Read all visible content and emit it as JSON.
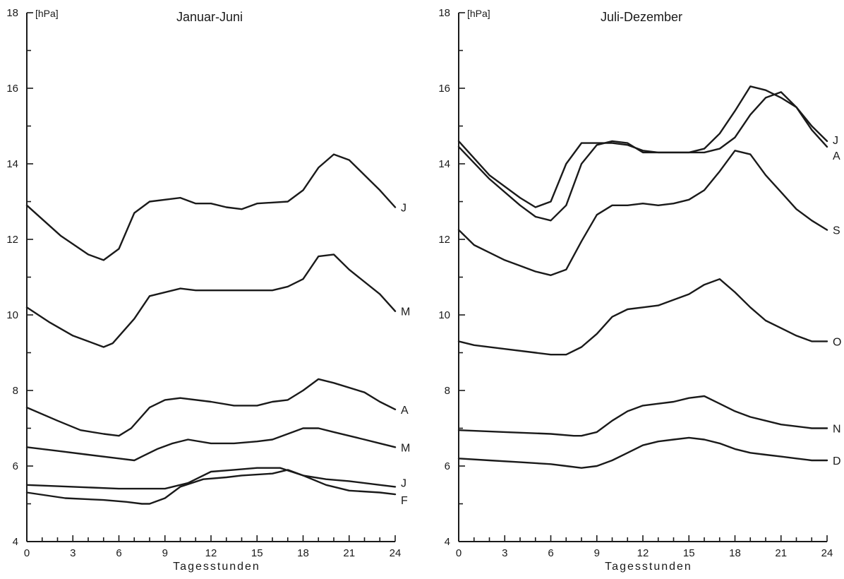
{
  "chart_data": [
    {
      "type": "line",
      "title": "Januar-Juni",
      "unit_label": "[hPa]",
      "xlabel": "Tagesstunden",
      "ylabel": "",
      "xlim": [
        0,
        24
      ],
      "ylim": [
        4,
        18
      ],
      "xticks": [
        0,
        3,
        6,
        9,
        12,
        15,
        18,
        21,
        24
      ],
      "yticks": [
        4,
        6,
        8,
        10,
        12,
        14,
        16,
        18
      ],
      "grid": false,
      "series": [
        {
          "name": "J",
          "x": [
            0,
            2.2,
            4,
            5,
            6,
            7,
            8,
            10,
            11,
            12,
            13,
            14,
            15,
            17,
            18,
            19,
            20,
            21,
            23,
            24
          ],
          "values": [
            12.9,
            12.1,
            11.6,
            11.45,
            11.75,
            12.7,
            13.0,
            13.1,
            12.95,
            12.95,
            12.85,
            12.8,
            12.95,
            13.0,
            13.3,
            13.9,
            14.25,
            14.1,
            13.3,
            12.85
          ]
        },
        {
          "name": "M",
          "x": [
            0,
            1.5,
            3,
            4,
            5,
            5.6,
            7,
            8,
            10,
            11,
            12,
            14,
            16,
            17,
            18,
            19,
            20,
            21,
            23,
            24
          ],
          "values": [
            10.2,
            9.8,
            9.45,
            9.3,
            9.15,
            9.25,
            9.9,
            10.5,
            10.7,
            10.65,
            10.65,
            10.65,
            10.65,
            10.75,
            10.95,
            11.55,
            11.6,
            11.2,
            10.55,
            10.1
          ]
        },
        {
          "name": "A",
          "x": [
            0,
            2,
            3.5,
            5,
            6,
            6.8,
            8,
            9,
            10,
            12,
            13.5,
            15,
            16,
            17,
            18,
            19,
            20,
            22,
            23,
            24
          ],
          "values": [
            7.55,
            7.2,
            6.95,
            6.85,
            6.8,
            7.0,
            7.55,
            7.75,
            7.8,
            7.7,
            7.6,
            7.6,
            7.7,
            7.75,
            8.0,
            8.3,
            8.2,
            7.95,
            7.7,
            7.5
          ]
        },
        {
          "name": "M",
          "x": [
            0,
            2,
            4,
            6,
            7,
            7.5,
            8.5,
            9.5,
            10.5,
            12,
            13.5,
            15,
            16,
            17,
            18,
            19,
            20,
            22,
            23,
            24
          ],
          "values": [
            6.5,
            6.4,
            6.3,
            6.2,
            6.15,
            6.25,
            6.45,
            6.6,
            6.7,
            6.6,
            6.6,
            6.65,
            6.7,
            6.85,
            7.0,
            7.0,
            6.9,
            6.7,
            6.6,
            6.5
          ]
        },
        {
          "name": "J",
          "x": [
            0,
            3,
            6,
            8,
            9,
            10.5,
            12,
            13.5,
            15,
            16.5,
            18,
            19.5,
            21,
            23,
            24
          ],
          "values": [
            5.5,
            5.45,
            5.4,
            5.4,
            5.4,
            5.55,
            5.85,
            5.9,
            5.95,
            5.95,
            5.75,
            5.65,
            5.6,
            5.5,
            5.45
          ]
        },
        {
          "name": "F",
          "x": [
            0,
            2.5,
            5,
            6.5,
            7.5,
            8,
            9,
            10,
            11.5,
            13,
            14,
            16,
            17,
            18,
            19.5,
            21,
            23,
            24
          ],
          "values": [
            5.3,
            5.15,
            5.1,
            5.05,
            5.0,
            5.0,
            5.15,
            5.45,
            5.65,
            5.7,
            5.75,
            5.8,
            5.9,
            5.75,
            5.5,
            5.35,
            5.3,
            5.25
          ]
        }
      ]
    },
    {
      "type": "line",
      "title": "Juli-Dezember",
      "unit_label": "[hPa]",
      "xlabel": "Tagesstunden",
      "ylabel": "",
      "xlim": [
        0,
        24
      ],
      "ylim": [
        4,
        18
      ],
      "xticks": [
        0,
        3,
        6,
        9,
        12,
        15,
        18,
        21,
        24
      ],
      "yticks": [
        4,
        6,
        8,
        10,
        12,
        14,
        16,
        18
      ],
      "grid": false,
      "series": [
        {
          "name": "J",
          "x": [
            0,
            2,
            4,
            5,
            6,
            7,
            8,
            9,
            10,
            11,
            12,
            13,
            14,
            15,
            16,
            17,
            18,
            19,
            20,
            21,
            22,
            23,
            24
          ],
          "values": [
            14.6,
            13.7,
            13.1,
            12.85,
            13.0,
            14.0,
            14.55,
            14.55,
            14.55,
            14.5,
            14.35,
            14.3,
            14.3,
            14.3,
            14.4,
            14.8,
            15.4,
            16.05,
            15.95,
            15.75,
            15.5,
            15.0,
            14.6
          ]
        },
        {
          "name": "A",
          "x": [
            0,
            2,
            4,
            5,
            6,
            7,
            8,
            9,
            10,
            11,
            12,
            13,
            14,
            15,
            16,
            17,
            18,
            19,
            20,
            21,
            22,
            23,
            24
          ],
          "values": [
            14.45,
            13.6,
            12.9,
            12.6,
            12.5,
            12.9,
            14.0,
            14.5,
            14.6,
            14.55,
            14.3,
            14.3,
            14.3,
            14.3,
            14.3,
            14.4,
            14.7,
            15.3,
            15.75,
            15.9,
            15.5,
            14.9,
            14.45
          ]
        },
        {
          "name": "S",
          "x": [
            0,
            1,
            2,
            3,
            4,
            5,
            6,
            7,
            8,
            9,
            10,
            11,
            12,
            13,
            14,
            15,
            16,
            17,
            18,
            19,
            20,
            21,
            22,
            23,
            24
          ],
          "values": [
            12.25,
            11.85,
            11.65,
            11.45,
            11.3,
            11.15,
            11.05,
            11.2,
            11.95,
            12.65,
            12.9,
            12.9,
            12.95,
            12.9,
            12.95,
            13.05,
            13.3,
            13.8,
            14.35,
            14.25,
            13.7,
            13.25,
            12.8,
            12.5,
            12.25
          ]
        },
        {
          "name": "O",
          "x": [
            0,
            1,
            3,
            5,
            6,
            7,
            8,
            9,
            10,
            11,
            12,
            13,
            14,
            15,
            16,
            17,
            18,
            19,
            20,
            21,
            22,
            23,
            24
          ],
          "values": [
            9.3,
            9.2,
            9.1,
            9.0,
            8.95,
            8.95,
            9.15,
            9.5,
            9.95,
            10.15,
            10.2,
            10.25,
            10.4,
            10.55,
            10.8,
            10.95,
            10.6,
            10.2,
            9.85,
            9.65,
            9.45,
            9.3,
            9.3
          ]
        },
        {
          "name": "N",
          "x": [
            0,
            3,
            6,
            7.5,
            8,
            9,
            10,
            11,
            12,
            13,
            14,
            15,
            16,
            17,
            18,
            19,
            20,
            21,
            22,
            23,
            24
          ],
          "values": [
            6.95,
            6.9,
            6.85,
            6.8,
            6.8,
            6.9,
            7.2,
            7.45,
            7.6,
            7.65,
            7.7,
            7.8,
            7.85,
            7.65,
            7.45,
            7.3,
            7.2,
            7.1,
            7.05,
            7.0,
            7.0
          ]
        },
        {
          "name": "D",
          "x": [
            0,
            2,
            4,
            6,
            7,
            8,
            9,
            10,
            11,
            12,
            13,
            14,
            15,
            16,
            17,
            18,
            19,
            20,
            21,
            22,
            23,
            24
          ],
          "values": [
            6.2,
            6.15,
            6.1,
            6.05,
            6.0,
            5.95,
            6.0,
            6.15,
            6.35,
            6.55,
            6.65,
            6.7,
            6.75,
            6.7,
            6.6,
            6.45,
            6.35,
            6.3,
            6.25,
            6.2,
            6.15,
            6.15
          ]
        }
      ]
    }
  ]
}
